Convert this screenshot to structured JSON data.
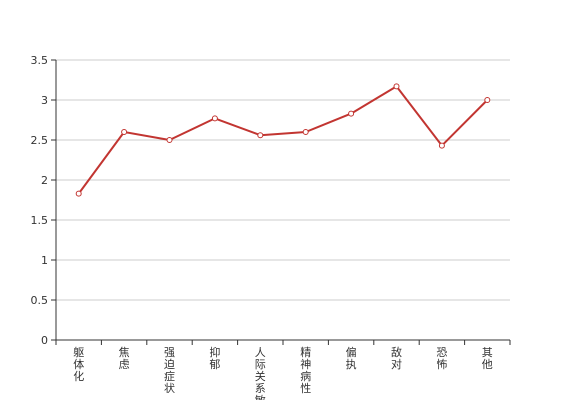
{
  "chart_data": {
    "type": "line",
    "categories": [
      "躯体化",
      "焦虑",
      "强迫症状",
      "抑郁",
      "人际关系敏感",
      "精神病性",
      "偏执",
      "敌对",
      "恐怖",
      "其他"
    ],
    "series": [
      {
        "values": [
          1.83,
          2.6,
          2.5,
          2.77,
          2.56,
          2.6,
          2.83,
          3.17,
          2.43,
          3.0
        ],
        "color": "#c23531"
      }
    ],
    "ylim": [
      0,
      3.5
    ],
    "yticks": [
      "0",
      "0.5",
      "1",
      "1.5",
      "2",
      "2.5",
      "3",
      "3.5"
    ],
    "grid": true,
    "legend": "none",
    "title": "",
    "xlabel": "",
    "ylabel": ""
  }
}
